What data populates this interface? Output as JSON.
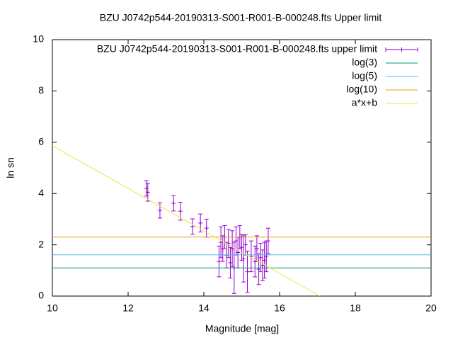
{
  "chart_data": {
    "type": "scatter",
    "title": "BZU J0742p544-20190313-S001-R001-B-000248.fts Upper limit",
    "x_label": "Magnitude [mag]",
    "y_label": "ln sn",
    "xlim": [
      10,
      20
    ],
    "xticks": [
      10,
      12,
      14,
      16,
      18,
      20
    ],
    "ylim": [
      0,
      10
    ],
    "yticks": [
      0,
      2,
      4,
      6,
      8,
      10
    ],
    "legend": "top-right",
    "series": [
      {
        "name": "BZU J0742p544-20190313-S001-R001-B-000248.fts upper limit",
        "type": "errorbars",
        "color": "#9400d3",
        "x": [
          12.48,
          12.52,
          12.84,
          13.2,
          13.38,
          13.7,
          13.91,
          14.07,
          14.4,
          14.45,
          14.5,
          14.55,
          14.6,
          14.65,
          14.7,
          14.75,
          14.8,
          14.85,
          14.9,
          14.95,
          15.0,
          15.05,
          15.1,
          15.15,
          15.25,
          15.35,
          15.4,
          15.45,
          15.5,
          15.55,
          15.6,
          15.65,
          15.7
        ],
        "values": [
          4.2,
          4.05,
          3.34,
          3.62,
          3.31,
          2.71,
          2.85,
          2.65,
          1.35,
          2.1,
          1.85,
          2.3,
          1.6,
          2.05,
          1.3,
          1.85,
          1.1,
          2.15,
          1.7,
          2.3,
          1.9,
          1.45,
          2.0,
          0.95,
          1.55,
          1.35,
          1.85,
          1.05,
          1.5,
          1.2,
          1.4,
          1.55,
          2.15
        ],
        "errors": [
          0.3,
          0.35,
          0.3,
          0.3,
          0.35,
          0.3,
          0.35,
          0.35,
          0.6,
          0.6,
          0.5,
          0.45,
          0.5,
          0.55,
          0.6,
          0.7,
          1.0,
          0.55,
          0.6,
          0.45,
          0.5,
          0.9,
          0.4,
          0.8,
          0.6,
          0.6,
          0.5,
          0.6,
          0.55,
          0.6,
          0.7,
          0.6,
          0.5
        ]
      },
      {
        "name": "log(3)",
        "type": "line",
        "color": "#009e73",
        "x": [
          10,
          20
        ],
        "values": [
          1.0986,
          1.0986
        ]
      },
      {
        "name": "log(5)",
        "type": "line",
        "color": "#56b4e9",
        "x": [
          10,
          20
        ],
        "values": [
          1.6094,
          1.6094
        ]
      },
      {
        "name": "log(10)",
        "type": "line",
        "color": "#e69f00",
        "x": [
          10,
          20
        ],
        "values": [
          2.3026,
          2.3026
        ]
      },
      {
        "name": "a*x+b",
        "type": "line",
        "color": "#f0e442",
        "x": [
          10,
          17.07
        ],
        "values": [
          5.86,
          0
        ]
      }
    ]
  }
}
